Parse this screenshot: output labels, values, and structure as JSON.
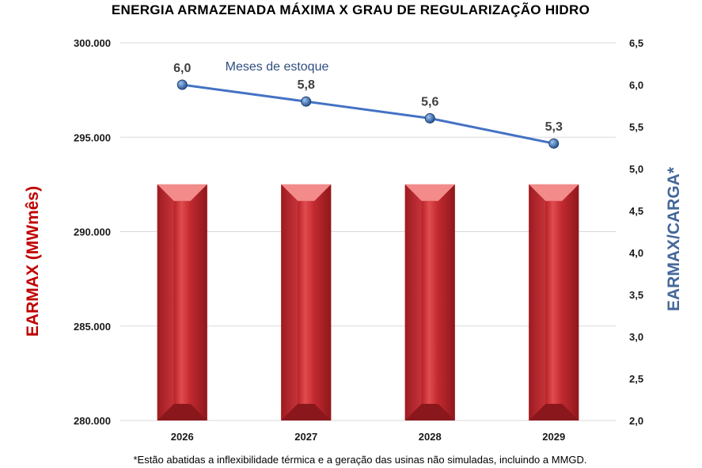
{
  "chart_data": {
    "type": "bar",
    "title": "ENERGIA ARMAZENADA MÁXIMA X GRAU DE REGULARIZAÇÃO HIDRO",
    "categories": [
      "2026",
      "2027",
      "2028",
      "2029"
    ],
    "ylabel": "EARMAX (MWmês)",
    "ylabel_right": "EARMAX/CARGA*",
    "ylim": [
      280000,
      300000
    ],
    "ylim_right": [
      2.0,
      6.5
    ],
    "y_ticks": [
      "280.000",
      "285.000",
      "290.000",
      "295.000",
      "300.000"
    ],
    "y_ticks_right": [
      "2,0",
      "2,5",
      "3,0",
      "3,5",
      "4,0",
      "4,5",
      "5,0",
      "5,5",
      "6,0",
      "6,5"
    ],
    "grid": true,
    "series": [
      {
        "type": "bar",
        "axis": "left",
        "values": [
          292500,
          292500,
          292500,
          292500
        ],
        "color": "#c0272d"
      },
      {
        "type": "line",
        "axis": "right",
        "name": "Meses de estoque",
        "values": [
          6.0,
          5.8,
          5.6,
          5.3
        ],
        "data_labels": [
          "6,0",
          "5,8",
          "5,6",
          "5,3"
        ],
        "color": "#4472c4"
      }
    ],
    "colors": {
      "left_axis_label": "#c00000",
      "right_axis_label": "#44679a",
      "series_label": "#2f4f80",
      "data_label": "#404040"
    }
  },
  "footnote": "*Estão abatidas a inflexibilidade térmica e a geração das usinas não simuladas, incluindo a MMGD."
}
